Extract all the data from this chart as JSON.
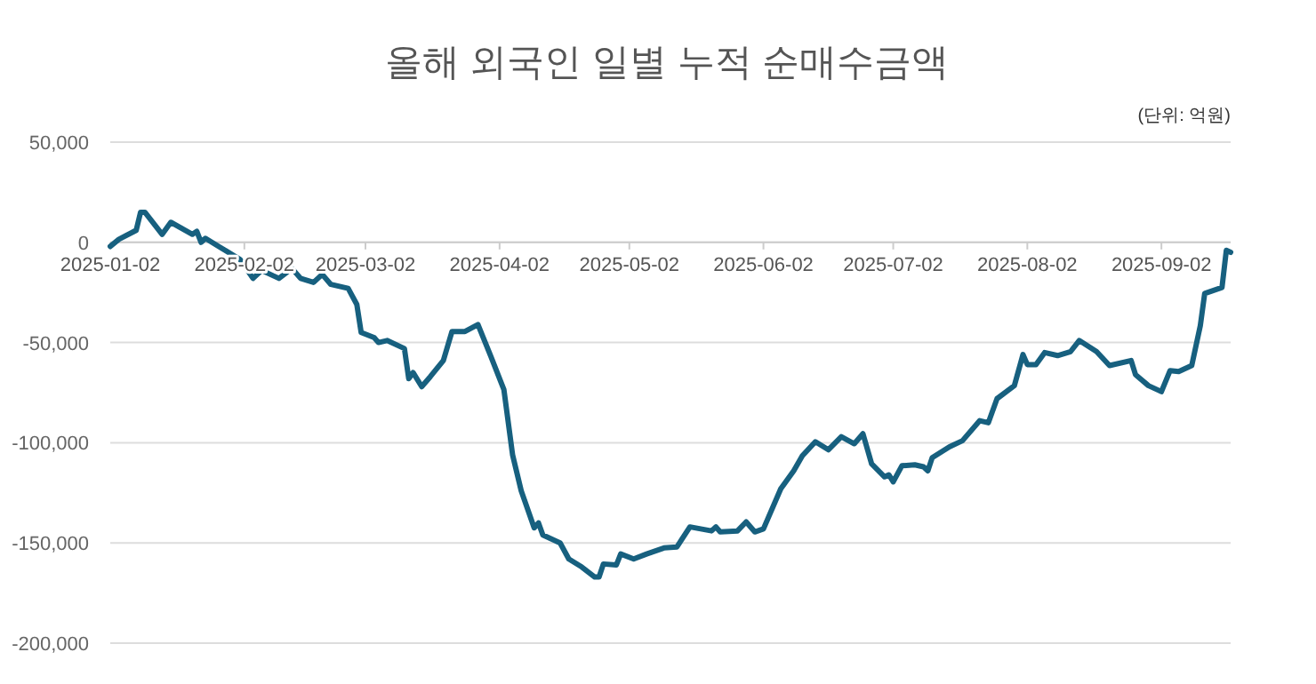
{
  "chart_data": {
    "type": "line",
    "title": "올해 외국인 일별 누적 순매수금액",
    "annotations": [
      "(단위: 억원)"
    ],
    "x": [
      "2025-01-02",
      "2025-01-04",
      "2025-01-08",
      "2025-01-09",
      "2025-01-10",
      "2025-01-14",
      "2025-01-16",
      "2025-01-21",
      "2025-01-22",
      "2025-01-23",
      "2025-01-24",
      "2025-01-27",
      "2025-02-01",
      "2025-02-04",
      "2025-02-06",
      "2025-02-10",
      "2025-02-13",
      "2025-02-15",
      "2025-02-18",
      "2025-02-20",
      "2025-02-22",
      "2025-02-26",
      "2025-02-28",
      "2025-03-01",
      "2025-03-04",
      "2025-03-05",
      "2025-03-07",
      "2025-03-11",
      "2025-03-12",
      "2025-03-13",
      "2025-03-15",
      "2025-03-17",
      "2025-03-20",
      "2025-03-22",
      "2025-03-25",
      "2025-03-28",
      "2025-03-31",
      "2025-04-03",
      "2025-04-05",
      "2025-04-07",
      "2025-04-10",
      "2025-04-11",
      "2025-04-12",
      "2025-04-16",
      "2025-04-18",
      "2025-04-21",
      "2025-04-24",
      "2025-04-25",
      "2025-04-26",
      "2025-04-29",
      "2025-04-30",
      "2025-05-03",
      "2025-05-06",
      "2025-05-10",
      "2025-05-13",
      "2025-05-16",
      "2025-05-21",
      "2025-05-22",
      "2025-05-23",
      "2025-05-27",
      "2025-05-29",
      "2025-05-31",
      "2025-06-02",
      "2025-06-06",
      "2025-06-09",
      "2025-06-11",
      "2025-06-14",
      "2025-06-17",
      "2025-06-20",
      "2025-06-23",
      "2025-06-25",
      "2025-06-27",
      "2025-06-30",
      "2025-07-01",
      "2025-07-02",
      "2025-07-04",
      "2025-07-07",
      "2025-07-09",
      "2025-07-10",
      "2025-07-11",
      "2025-07-15",
      "2025-07-18",
      "2025-07-22",
      "2025-07-24",
      "2025-07-26",
      "2025-07-30",
      "2025-08-01",
      "2025-08-02",
      "2025-08-04",
      "2025-08-06",
      "2025-08-09",
      "2025-08-12",
      "2025-08-14",
      "2025-08-18",
      "2025-08-21",
      "2025-08-26",
      "2025-08-27",
      "2025-08-30",
      "2025-09-02",
      "2025-09-04",
      "2025-09-06",
      "2025-09-09",
      "2025-09-11",
      "2025-09-12",
      "2025-09-16",
      "2025-09-17",
      "2025-09-18"
    ],
    "values": [
      -2000,
      1500,
      6000,
      15000,
      15000,
      4000,
      10000,
      4000,
      5500,
      0,
      2000,
      -2000,
      -8500,
      -18000,
      -14000,
      -18000,
      -13000,
      -18000,
      -20000,
      -16000,
      -21000,
      -23000,
      -31000,
      -45000,
      -47500,
      -50000,
      -49000,
      -53000,
      -68000,
      -65000,
      -72000,
      -67000,
      -59000,
      -44500,
      -44500,
      -41000,
      -57000,
      -73500,
      -106000,
      -124000,
      -142500,
      -140000,
      -146000,
      -150000,
      -158000,
      -162000,
      -167000,
      -167000,
      -160500,
      -161000,
      -155500,
      -158000,
      -155500,
      -152500,
      -152000,
      -142000,
      -144000,
      -142000,
      -144500,
      -144000,
      -139500,
      -144500,
      -143000,
      -123000,
      -114000,
      -106500,
      -99500,
      -103500,
      -97000,
      -100500,
      -95500,
      -110500,
      -117000,
      -116000,
      -119500,
      -111500,
      -111000,
      -112000,
      -114000,
      -107500,
      -102000,
      -99000,
      -89000,
      -90000,
      -78000,
      -71500,
      -56000,
      -61000,
      -61000,
      -55000,
      -56500,
      -54500,
      -49000,
      -54500,
      -61500,
      -59000,
      -66000,
      -71500,
      -74500,
      -64000,
      -64500,
      -61500,
      -41500,
      -25500,
      -22500,
      -4000,
      -5000
    ],
    "color": "#17607f",
    "xlim": [
      "2025-01-02",
      "2025-09-18"
    ],
    "ylim": [
      -200000,
      50000
    ],
    "xticks": [
      "2025-01-02",
      "2025-02-02",
      "2025-03-02",
      "2025-04-02",
      "2025-05-02",
      "2025-06-02",
      "2025-07-02",
      "2025-08-02",
      "2025-09-02"
    ],
    "yticks": [
      {
        "value": -200000,
        "label": "-200,000"
      },
      {
        "value": -150000,
        "label": "-150,000"
      },
      {
        "value": -100000,
        "label": "-100,000"
      },
      {
        "value": -50000,
        "label": "-50,000"
      },
      {
        "value": 0,
        "label": "0"
      },
      {
        "value": 50000,
        "label": "50,000"
      }
    ],
    "grid": "y"
  }
}
